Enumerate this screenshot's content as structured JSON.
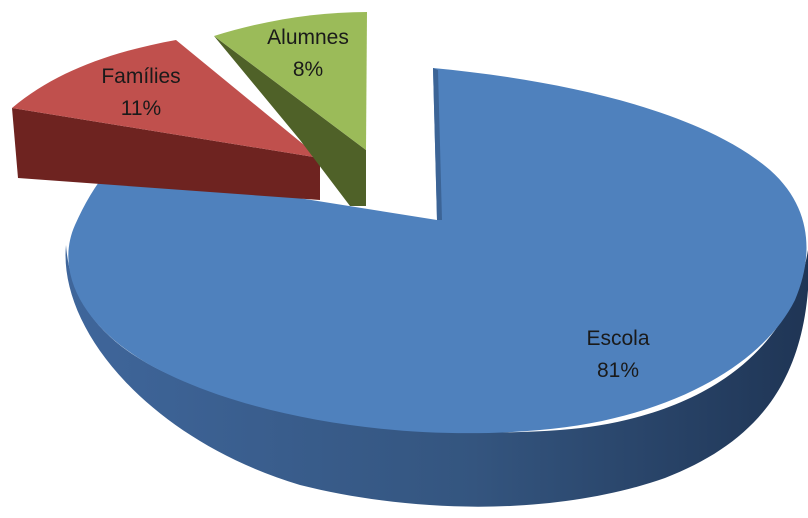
{
  "chart_data": {
    "type": "pie",
    "style": "3d-exploded",
    "title": "",
    "legend": "none",
    "slices": [
      {
        "label": "Escola",
        "percent_label": "81%",
        "value": 81,
        "color": "#4f81bd",
        "side_color": "#34557f"
      },
      {
        "label": "Famílies",
        "percent_label": "11%",
        "value": 11,
        "color": "#c0504d",
        "side_color": "#6e2320"
      },
      {
        "label": "Alumnes",
        "percent_label": "8%",
        "value": 8,
        "color": "#9bbb59",
        "side_color": "#4f6128"
      }
    ]
  }
}
